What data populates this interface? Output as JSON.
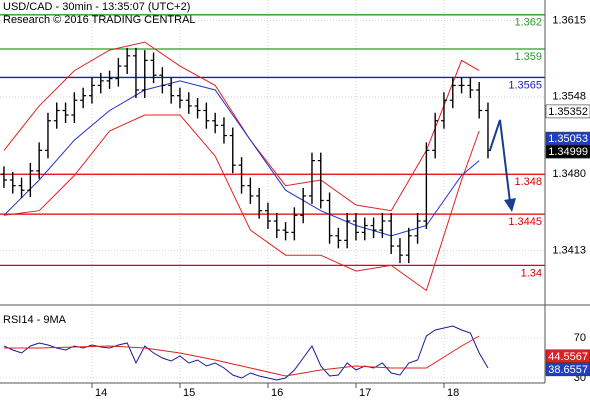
{
  "chart_data": [
    {
      "type": "ohlc",
      "title": "USD/CAD - 30min - 13:35:07 (UTC+2)",
      "subtitle": "Research © 2016 TRADING CENTRAL",
      "x": [
        13.0,
        13.1,
        13.2,
        13.3,
        13.4,
        13.5,
        13.6,
        13.7,
        13.8,
        13.9,
        14.0,
        14.1,
        14.2,
        14.3,
        14.4,
        14.5,
        14.6,
        14.7,
        14.8,
        14.9,
        15.0,
        15.1,
        15.2,
        15.3,
        15.4,
        15.5,
        15.6,
        15.7,
        15.8,
        15.9,
        16.0,
        16.1,
        16.2,
        16.3,
        16.4,
        16.5,
        16.6,
        16.7,
        16.8,
        16.9,
        17.0,
        17.1,
        17.2,
        17.3,
        17.4,
        17.5,
        17.6,
        17.7,
        17.8,
        17.9,
        18.0,
        18.1,
        18.2,
        18.3,
        18.4,
        18.5
      ],
      "open": [
        1.348,
        1.3475,
        1.347,
        1.3466,
        1.3483,
        1.3501,
        1.3527,
        1.3536,
        1.3532,
        1.3545,
        1.3549,
        1.3558,
        1.3562,
        1.3564,
        1.3575,
        1.3584,
        1.3554,
        1.358,
        1.3567,
        1.3558,
        1.3549,
        1.3545,
        1.354,
        1.3536,
        1.3527,
        1.3523,
        1.3514,
        1.3488,
        1.347,
        1.3461,
        1.3448,
        1.3439,
        1.3431,
        1.3429,
        1.3444,
        1.3461,
        1.3492,
        1.3457,
        1.3426,
        1.3422,
        1.3439,
        1.3429,
        1.3435,
        1.3431,
        1.3439,
        1.3417,
        1.3409,
        1.3426,
        1.3439,
        1.3501,
        1.3527,
        1.3545,
        1.3558,
        1.3558,
        1.3554,
        1.3536
      ],
      "high": [
        1.3487,
        1.3482,
        1.3477,
        1.349,
        1.3508,
        1.3534,
        1.3543,
        1.3543,
        1.3552,
        1.3556,
        1.3565,
        1.3569,
        1.3571,
        1.3582,
        1.3591,
        1.3591,
        1.3589,
        1.3587,
        1.3574,
        1.3565,
        1.3556,
        1.3552,
        1.3547,
        1.3543,
        1.3534,
        1.353,
        1.3521,
        1.3495,
        1.3477,
        1.3468,
        1.3455,
        1.3446,
        1.3438,
        1.3451,
        1.3468,
        1.3499,
        1.3499,
        1.3464,
        1.3433,
        1.3446,
        1.3446,
        1.3442,
        1.3442,
        1.3446,
        1.3446,
        1.3424,
        1.3433,
        1.3446,
        1.3508,
        1.3534,
        1.3552,
        1.3565,
        1.3565,
        1.3565,
        1.3561,
        1.3543
      ],
      "low": [
        1.3468,
        1.3463,
        1.3459,
        1.346,
        1.3476,
        1.3494,
        1.352,
        1.3525,
        1.3525,
        1.3538,
        1.3542,
        1.3551,
        1.3555,
        1.3557,
        1.3568,
        1.3547,
        1.3547,
        1.356,
        1.3551,
        1.3542,
        1.3538,
        1.3533,
        1.3529,
        1.352,
        1.3516,
        1.3507,
        1.3481,
        1.3463,
        1.3454,
        1.3441,
        1.3432,
        1.3424,
        1.3422,
        1.3422,
        1.3437,
        1.3454,
        1.345,
        1.3419,
        1.3415,
        1.3415,
        1.3422,
        1.3422,
        1.3424,
        1.3424,
        1.341,
        1.3402,
        1.3402,
        1.3419,
        1.3432,
        1.3494,
        1.352,
        1.3538,
        1.3551,
        1.3547,
        1.3529,
        1.3494
      ],
      "close": [
        1.3475,
        1.347,
        1.3466,
        1.3483,
        1.3501,
        1.3527,
        1.3536,
        1.3532,
        1.3545,
        1.3549,
        1.3558,
        1.3562,
        1.3564,
        1.3575,
        1.3584,
        1.3554,
        1.358,
        1.3567,
        1.3558,
        1.3549,
        1.3545,
        1.354,
        1.3536,
        1.3527,
        1.3523,
        1.3514,
        1.3488,
        1.347,
        1.3461,
        1.3448,
        1.3439,
        1.3431,
        1.3429,
        1.3444,
        1.3461,
        1.3492,
        1.3457,
        1.3426,
        1.3422,
        1.3439,
        1.3429,
        1.3435,
        1.3431,
        1.3439,
        1.3417,
        1.3409,
        1.3426,
        1.3439,
        1.3501,
        1.3527,
        1.3545,
        1.3558,
        1.3558,
        1.3554,
        1.3536,
        1.3501
      ],
      "color": "#000000",
      "overlay_x": [
        13.0,
        13.4,
        13.8,
        14.2,
        14.6,
        15.0,
        15.4,
        15.8,
        16.2,
        16.6,
        17.0,
        17.4,
        17.8,
        18.2,
        18.4
      ],
      "overlays": [
        {
          "color": "#e02020",
          "values": [
            1.3501,
            1.354,
            1.3571,
            1.3589,
            1.3596,
            1.3575,
            1.3558,
            1.351,
            1.347,
            1.3475,
            1.3453,
            1.3448,
            1.3501,
            1.358,
            1.3571
          ]
        },
        {
          "color": "#e02020",
          "values": [
            1.3444,
            1.3448,
            1.3479,
            1.3518,
            1.3532,
            1.3532,
            1.3496,
            1.3431,
            1.3409,
            1.3409,
            1.3395,
            1.34,
            1.3378,
            1.3475,
            1.3518
          ]
        },
        {
          "color": "#2233cc",
          "values": [
            1.3444,
            1.3475,
            1.351,
            1.3536,
            1.3554,
            1.3562,
            1.3554,
            1.351,
            1.3466,
            1.3448,
            1.3435,
            1.3426,
            1.3435,
            1.3479,
            1.3492
          ]
        }
      ],
      "levels": [
        {
          "value": 1.362,
          "color": "#2a9d2a"
        },
        {
          "value": 1.359,
          "color": "#2a9d2a"
        },
        {
          "value": 1.3565,
          "color": "#1a1acc"
        },
        {
          "value": 1.348,
          "color": "#e00000"
        },
        {
          "value": 1.3445,
          "color": "#e00000"
        },
        {
          "value": 1.34,
          "color": "#e00000"
        }
      ],
      "markers": [
        {
          "value": 1.35352,
          "color": "#ffffff",
          "text_color": "#000000"
        },
        {
          "value": 1.35053,
          "color": "#1f3fbf",
          "text_color": "#ffffff"
        },
        {
          "value": 1.34999,
          "color": "#000000",
          "text_color": "#ffffff"
        }
      ],
      "xlim": [
        12.955,
        19.148
      ],
      "ylim": [
        1.3367,
        1.3633
      ],
      "yticks": [
        1.3615,
        1.3548,
        {
          "value": 1.348,
          "label": "1.3480"
        },
        1.3413
      ],
      "grid": true
    },
    {
      "type": "line",
      "title": "RSI14 - 9MA",
      "series": [
        {
          "color": "#1a1a99",
          "x": [
            13.0,
            13.1,
            13.2,
            13.3,
            13.4,
            13.5,
            13.6,
            13.7,
            13.8,
            13.9,
            14.0,
            14.1,
            14.2,
            14.3,
            14.4,
            14.5,
            14.6,
            14.7,
            14.8,
            14.9,
            15.0,
            15.1,
            15.2,
            15.3,
            15.4,
            15.5,
            15.6,
            15.7,
            15.8,
            15.9,
            16.0,
            16.1,
            16.2,
            16.3,
            16.4,
            16.5,
            16.6,
            16.7,
            16.8,
            16.9,
            17.0,
            17.1,
            17.2,
            17.3,
            17.4,
            17.5,
            17.6,
            17.7,
            17.8,
            17.9,
            18.0,
            18.1,
            18.2,
            18.3,
            18.4,
            18.5
          ],
          "values": [
            62,
            58,
            55,
            62,
            65,
            63,
            60,
            58,
            62,
            60,
            63,
            61,
            60,
            63,
            65,
            45,
            62,
            55,
            50,
            47,
            52,
            45,
            48,
            42,
            45,
            40,
            33,
            30,
            35,
            32,
            30,
            28,
            30,
            38,
            50,
            62,
            42,
            32,
            33,
            45,
            38,
            42,
            40,
            45,
            35,
            33,
            45,
            48,
            72,
            78,
            80,
            82,
            78,
            75,
            55,
            40
          ]
        },
        {
          "color": "#e02020",
          "x": [
            13.0,
            13.4,
            13.8,
            14.2,
            14.6,
            15.0,
            15.4,
            15.8,
            16.2,
            16.6,
            17.0,
            17.4,
            17.8,
            18.2,
            18.4
          ],
          "values": [
            60,
            60,
            61,
            62,
            60,
            55,
            48,
            40,
            32,
            38,
            42,
            40,
            40,
            62,
            72
          ]
        }
      ],
      "markers": [
        {
          "value": 44.5567,
          "color": "#e02020",
          "text_color": "#ffffff"
        },
        {
          "value": 38.6557,
          "color": "#1f3fbf",
          "text_color": "#ffffff"
        }
      ],
      "xlim": [
        12.955,
        19.148
      ],
      "xticks": [
        14,
        15,
        16,
        17,
        18
      ],
      "ylim": [
        25,
        100
      ],
      "yticks": [
        70,
        30
      ],
      "grid": true
    }
  ]
}
